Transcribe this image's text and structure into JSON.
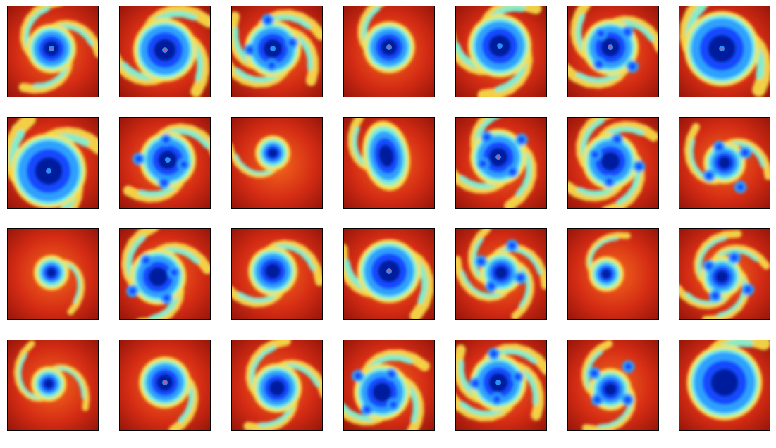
{
  "figure": {
    "rows": 4,
    "columns": 7,
    "image_kind": "infrared satellite imagery of tropical cyclones (jet colormap)"
  },
  "palette": {
    "dark_red": "#8e1208",
    "red": "#d42c14",
    "orange": "#f46a1c",
    "yellow": "#f8e24a",
    "cyan": "#7af0d8",
    "light_blue": "#2ea0ff",
    "blue": "#1848ff",
    "navy": "#001c9e",
    "center_mark": "#ff3a5a"
  },
  "tiles": [
    {
      "name": "cyclone-r1c1",
      "eye": true,
      "core": "compact",
      "arms": 3,
      "mark": true
    },
    {
      "name": "cyclone-r1c2",
      "eye": true,
      "core": "large",
      "arms": 3,
      "mark": true
    },
    {
      "name": "cyclone-r1c3",
      "eye": true,
      "core": "ragged",
      "arms": 4,
      "mark": false
    },
    {
      "name": "cyclone-r1c4",
      "eye": true,
      "core": "round",
      "arms": 1,
      "mark": true
    },
    {
      "name": "cyclone-r1c5",
      "eye": true,
      "core": "large",
      "arms": 3,
      "mark": true
    },
    {
      "name": "cyclone-r1c6",
      "eye": true,
      "core": "ragged",
      "arms": 3,
      "mark": true
    },
    {
      "name": "cyclone-r1c7",
      "eye": true,
      "core": "huge",
      "arms": 2,
      "mark": true
    },
    {
      "name": "cyclone-r2c1",
      "eye": true,
      "core": "huge",
      "arms": 3,
      "mark": false
    },
    {
      "name": "cyclone-r2c2",
      "eye": true,
      "core": "ragged",
      "arms": 2,
      "mark": false
    },
    {
      "name": "cyclone-r2c3",
      "eye": false,
      "core": "small",
      "arms": 1,
      "mark": false
    },
    {
      "name": "cyclone-r2c4",
      "eye": false,
      "core": "elongated",
      "arms": 1,
      "mark": false
    },
    {
      "name": "cyclone-r2c5",
      "eye": true,
      "core": "ragged",
      "arms": 3,
      "mark": true
    },
    {
      "name": "cyclone-r2c6",
      "eye": false,
      "core": "ragged",
      "arms": 4,
      "mark": false
    },
    {
      "name": "cyclone-r2c7",
      "eye": false,
      "core": "scattered",
      "arms": 2,
      "mark": false
    },
    {
      "name": "cyclone-r3c1",
      "eye": false,
      "core": "small",
      "arms": 1,
      "mark": false
    },
    {
      "name": "cyclone-r3c2",
      "eye": false,
      "core": "ragged",
      "arms": 3,
      "mark": false
    },
    {
      "name": "cyclone-r3c3",
      "eye": false,
      "core": "compact",
      "arms": 2,
      "mark": false
    },
    {
      "name": "cyclone-r3c4",
      "eye": true,
      "core": "large",
      "arms": 2,
      "mark": true
    },
    {
      "name": "cyclone-r3c5",
      "eye": false,
      "core": "scattered",
      "arms": 4,
      "mark": false
    },
    {
      "name": "cyclone-r3c6",
      "eye": false,
      "core": "small",
      "arms": 1,
      "mark": false
    },
    {
      "name": "cyclone-r3c7",
      "eye": false,
      "core": "scattered",
      "arms": 4,
      "mark": false
    },
    {
      "name": "cyclone-r4c1",
      "eye": false,
      "core": "small",
      "arms": 2,
      "mark": false
    },
    {
      "name": "cyclone-r4c2",
      "eye": true,
      "core": "round",
      "arms": 1,
      "mark": true
    },
    {
      "name": "cyclone-r4c3",
      "eye": false,
      "core": "compact",
      "arms": 3,
      "mark": false
    },
    {
      "name": "cyclone-r4c4",
      "eye": false,
      "core": "ragged",
      "arms": 3,
      "mark": false
    },
    {
      "name": "cyclone-r4c5",
      "eye": true,
      "core": "ragged",
      "arms": 4,
      "mark": false
    },
    {
      "name": "cyclone-r4c6",
      "eye": false,
      "core": "scattered",
      "arms": 2,
      "mark": false
    },
    {
      "name": "cyclone-r4c7",
      "eye": false,
      "core": "huge",
      "arms": 1,
      "mark": false
    }
  ]
}
